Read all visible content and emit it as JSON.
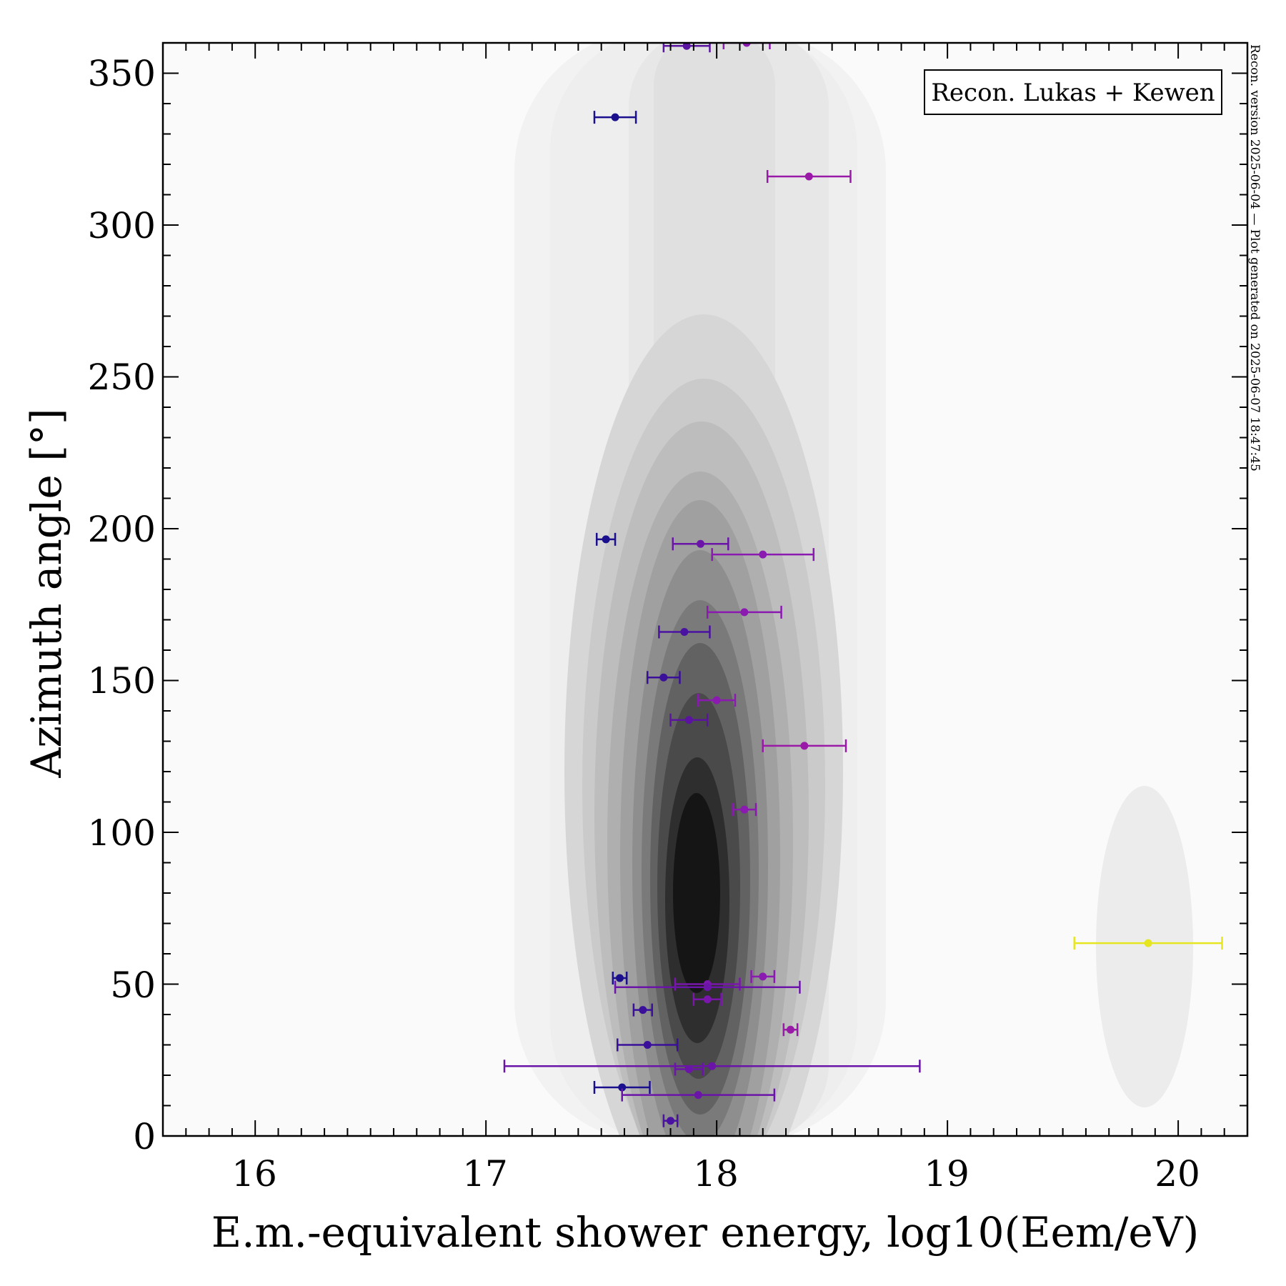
{
  "chart_data": {
    "type": "scatter",
    "xlabel": "E.m.-equivalent shower energy, log10(Eem/eV)",
    "ylabel": "Azimuth angle [°]",
    "xlim": [
      15.6,
      20.3
    ],
    "ylim": [
      0,
      360
    ],
    "x_ticks": [
      "16",
      "17",
      "18",
      "19",
      "20"
    ],
    "y_ticks": [
      "0",
      "50",
      "100",
      "150",
      "200",
      "250",
      "300",
      "350"
    ],
    "legend": "Recon. Lukas + Kewen",
    "legend_position": "top-right",
    "side_note": "Recon. version 2025-06-04 — Plot generated on 2025-06-07 18:47:45",
    "background": "density contours (grayscale)",
    "points": [
      {
        "x": 17.87,
        "y": 359,
        "xerr": 0.1,
        "color": "#5a14a0"
      },
      {
        "x": 18.13,
        "y": 360,
        "xerr": 0.1,
        "color": "#8a1ab0"
      },
      {
        "x": 17.56,
        "y": 335.5,
        "xerr": 0.09,
        "color": "#1a0f8c"
      },
      {
        "x": 18.4,
        "y": 316,
        "xerr": 0.18,
        "color": "#9a1aa8"
      },
      {
        "x": 17.52,
        "y": 196.5,
        "xerr": 0.04,
        "color": "#1a0f8c"
      },
      {
        "x": 17.93,
        "y": 195,
        "xerr": 0.12,
        "color": "#6a14a8"
      },
      {
        "x": 18.2,
        "y": 191.5,
        "xerr": 0.22,
        "color": "#8a1ab0"
      },
      {
        "x": 18.12,
        "y": 172.5,
        "xerr": 0.16,
        "color": "#8a1ab0"
      },
      {
        "x": 17.86,
        "y": 166,
        "xerr": 0.11,
        "color": "#4a12a0"
      },
      {
        "x": 17.77,
        "y": 151,
        "xerr": 0.07,
        "color": "#3a109a"
      },
      {
        "x": 18.0,
        "y": 143.5,
        "xerr": 0.08,
        "color": "#8a1ab0"
      },
      {
        "x": 17.88,
        "y": 137,
        "xerr": 0.08,
        "color": "#5a14a0"
      },
      {
        "x": 18.38,
        "y": 128.5,
        "xerr": 0.18,
        "color": "#9a1aa8"
      },
      {
        "x": 18.12,
        "y": 107.5,
        "xerr": 0.05,
        "color": "#8a1ab0"
      },
      {
        "x": 19.87,
        "y": 63.5,
        "xerr": 0.32,
        "color": "#e6e620"
      },
      {
        "x": 18.2,
        "y": 52.5,
        "xerr": 0.05,
        "color": "#8a1ab0"
      },
      {
        "x": 17.58,
        "y": 52,
        "xerr": 0.03,
        "color": "#1a0f8c"
      },
      {
        "x": 17.96,
        "y": 50,
        "xerr": 0.14,
        "color": "#7a16ac"
      },
      {
        "x": 17.96,
        "y": 49,
        "xerr": 0.4,
        "color": "#6a14a8"
      },
      {
        "x": 17.96,
        "y": 45,
        "xerr": 0.06,
        "color": "#7a16ac"
      },
      {
        "x": 17.68,
        "y": 41.5,
        "xerr": 0.04,
        "color": "#3a109a"
      },
      {
        "x": 18.32,
        "y": 35,
        "xerr": 0.03,
        "color": "#9a1aa8"
      },
      {
        "x": 17.7,
        "y": 30,
        "xerr": 0.13,
        "color": "#3a109a"
      },
      {
        "x": 17.98,
        "y": 23,
        "xerr": 0.9,
        "color": "#6a14a8"
      },
      {
        "x": 17.88,
        "y": 22,
        "xerr": 0.06,
        "color": "#6a14a8"
      },
      {
        "x": 17.59,
        "y": 16,
        "xerr": 0.12,
        "color": "#1a0f8c"
      },
      {
        "x": 17.92,
        "y": 13.5,
        "xerr": 0.33,
        "color": "#6a14a8"
      },
      {
        "x": 17.8,
        "y": 5,
        "xerr": 0.03,
        "color": "#4a12a0"
      }
    ]
  }
}
